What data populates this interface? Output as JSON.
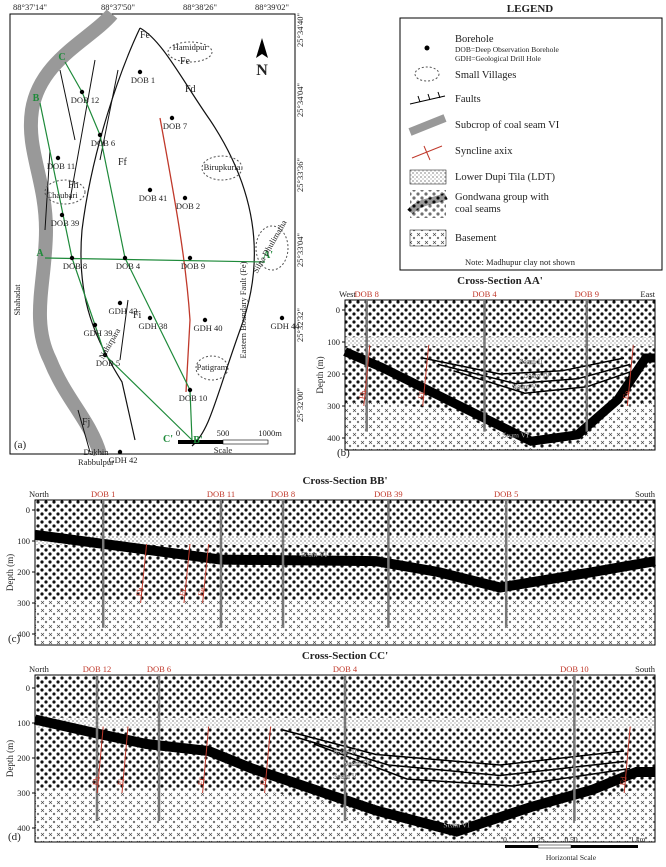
{
  "map": {
    "panel_label": "(a)",
    "longitudes": [
      "88°37'14\"",
      "88°37'50\"",
      "88°38'26\"",
      "88°39'02\""
    ],
    "latitudes": [
      "25°34'40\"",
      "25°34'04\"",
      "25°33'36\"",
      "25°33'04\"",
      "25°32'32\"",
      "25°32'00\""
    ],
    "section_ends": [
      "A",
      "A'",
      "B",
      "B'",
      "C",
      "C'"
    ],
    "boreholes": [
      "DOB 12",
      "DOB 6",
      "DOB 7",
      "DOB 11",
      "DOB 39",
      "DOB 41",
      "DOB 2",
      "DOB 8",
      "DOB 4",
      "DOB 9",
      "GDH 43",
      "GDH 38",
      "GDH 39",
      "GDH 40",
      "GDH 44",
      "DOB 5",
      "DOB 10",
      "GDH 42",
      "DOB 1"
    ],
    "places": [
      "Hamidpur",
      "Chaubari",
      "Birupkuria",
      "Silna Dhulimatha",
      "Shahadat",
      "Nahirpara",
      "Patigram",
      "Dakhin",
      "Rabbulpur"
    ],
    "faults": [
      "Fe",
      "Fe",
      "Fd",
      "Ff",
      "Fh",
      "Fi",
      "Fj"
    ],
    "boundary_label": "Eastern Boundary Fault (Fe)",
    "north": "N",
    "scale": {
      "ticks": [
        "0",
        "500",
        "1000m"
      ],
      "label": "Scale"
    }
  },
  "legend": {
    "title": "LEGEND",
    "items": [
      [
        "Borehole",
        "DOB=Deep Observation Borehole",
        "GDH=Geological Drill Hole"
      ],
      [
        "Small Villages"
      ],
      [
        "Faults"
      ],
      [
        "Subcrop of coal seam VI"
      ],
      [
        "Syncline axix"
      ],
      [
        "Lower Dupi Tila (LDT)"
      ],
      [
        "Gondwana group with",
        "coal seams"
      ],
      [
        "Basement"
      ]
    ],
    "note": "Note: Madhupur clay not shown"
  },
  "sections": [
    {
      "panel_label": "(b)",
      "title": "Cross-Section AA'",
      "ends": [
        "West",
        "East"
      ],
      "axis_label": "Depth (m)",
      "depth_ticks": [
        0,
        100,
        200,
        300,
        400
      ],
      "boreholes": [
        "DOB 8",
        "DOB 4",
        "DOB 9"
      ],
      "seams": [
        "Seam II",
        "Seam IV",
        "Seam V",
        "Seam VI"
      ],
      "faults": [
        "Fh",
        "Ff",
        "Fe"
      ]
    },
    {
      "panel_label": "(c)",
      "title": "Cross-Section BB'",
      "ends": [
        "North",
        "South"
      ],
      "axis_label": "Depth (m)",
      "depth_ticks": [
        0,
        100,
        200,
        300,
        400
      ],
      "boreholes": [
        "DOB 1",
        "DOB 11",
        "DOB 8",
        "DOB 39",
        "DOB 5"
      ],
      "seams": [
        "Seam VI"
      ],
      "faults": [
        "Fh",
        "Ff",
        "Fe"
      ]
    },
    {
      "panel_label": "(d)",
      "title": "Cross-Section CC'",
      "ends": [
        "North",
        "South"
      ],
      "axis_label": "Depth (m)",
      "depth_ticks": [
        0,
        100,
        200,
        300,
        400
      ],
      "boreholes": [
        "DOB 12",
        "DOB 6",
        "DOB 4",
        "DOB 10"
      ],
      "seams": [
        "Seam II",
        "Seam IV",
        "Seam V",
        "Seam VI"
      ],
      "faults": [
        "Fh",
        "Fi",
        "Ff",
        "Fe",
        "Fd"
      ]
    }
  ],
  "horizontal_scale": {
    "ticks": [
      "0",
      "0.25",
      "0.50",
      "1 km"
    ],
    "label": "Horizontal Scale"
  }
}
